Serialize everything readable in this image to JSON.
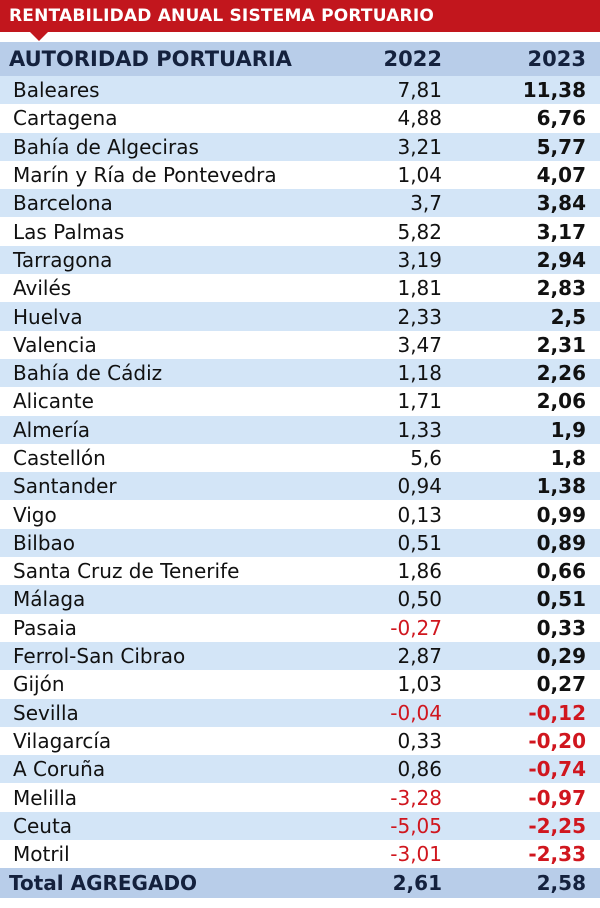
{
  "title": "RENTABILIDAD ANUAL SISTEMA PORTUARIO",
  "header": {
    "name": "AUTORIDAD PORTUARIA",
    "y2022": "2022",
    "y2023": "2023"
  },
  "colors": {
    "banner": "#c2161d",
    "header": "#b8cde9",
    "stripe": "#d3e5f7",
    "negative": "#d0161e"
  },
  "chart_data": {
    "type": "table",
    "title": "RENTABILIDAD ANUAL SISTEMA PORTUARIO",
    "columns": [
      "AUTORIDAD PORTUARIA",
      "2022",
      "2023"
    ],
    "rows": [
      [
        "Baleares",
        "7,81",
        "11,38"
      ],
      [
        "Cartagena",
        "4,88",
        "6,76"
      ],
      [
        "Bahía de Algeciras",
        "3,21",
        "5,77"
      ],
      [
        "Marín y Ría de Pontevedra",
        "1,04",
        "4,07"
      ],
      [
        "Barcelona",
        "3,7",
        "3,84"
      ],
      [
        "Las Palmas",
        "5,82",
        "3,17"
      ],
      [
        "Tarragona",
        "3,19",
        "2,94"
      ],
      [
        "Avilés",
        "1,81",
        "2,83"
      ],
      [
        "Huelva",
        "2,33",
        "2,5"
      ],
      [
        "Valencia",
        "3,47",
        "2,31"
      ],
      [
        "Bahía de Cádiz",
        "1,18",
        "2,26"
      ],
      [
        "Alicante",
        "1,71",
        "2,06"
      ],
      [
        "Almería",
        "1,33",
        "1,9"
      ],
      [
        "Castellón",
        "5,6",
        "1,8"
      ],
      [
        "Santander",
        "0,94",
        "1,38"
      ],
      [
        "Vigo",
        "0,13",
        "0,99"
      ],
      [
        "Bilbao",
        "0,51",
        "0,89"
      ],
      [
        "Santa Cruz de Tenerife",
        "1,86",
        "0,66"
      ],
      [
        "Málaga",
        "0,50",
        "0,51"
      ],
      [
        "Pasaia",
        "-0,27",
        "0,33"
      ],
      [
        "Ferrol-San Cibrao",
        "2,87",
        "0,29"
      ],
      [
        "Gijón",
        "1,03",
        "0,27"
      ],
      [
        "Sevilla",
        "-0,04",
        "-0,12"
      ],
      [
        "Vilagarcía",
        "0,33",
        "-0,20"
      ],
      [
        "A Coruña",
        "0,86",
        "-0,74"
      ],
      [
        "Melilla",
        "-3,28",
        "-0,97"
      ],
      [
        "Ceuta",
        "-5,05",
        "-2,25"
      ],
      [
        "Motril",
        "-3,01",
        "-2,33"
      ]
    ],
    "total": [
      "Total AGREGADO",
      "2,61",
      "2,58"
    ]
  }
}
